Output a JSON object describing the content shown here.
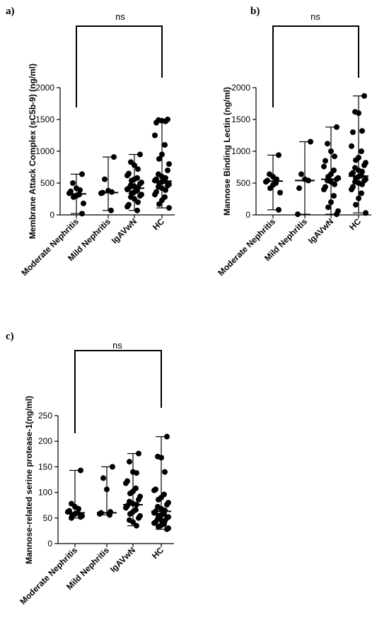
{
  "chart_data": [
    {
      "panel": "a)",
      "type": "scatter",
      "ylabel": "Membrane Attack Complex (sC5b-9) (ng/ml)",
      "ylim": [
        0,
        2000
      ],
      "yticks": [
        "0",
        "500",
        "1000",
        "1500",
        "2000"
      ],
      "categories": [
        "Moderate Nephritis",
        "Mild Nephritis",
        "IgAVwN",
        "HC"
      ],
      "significance": "ns",
      "groups": [
        {
          "name": "Moderate Nephritis",
          "median": 330,
          "min": 20,
          "max": 640,
          "points": [
            640,
            500,
            420,
            390,
            370,
            340,
            320,
            300,
            280,
            180,
            20
          ]
        },
        {
          "name": "Mild Nephritis",
          "median": 350,
          "min": 70,
          "max": 910,
          "points": [
            910,
            560,
            380,
            360,
            350,
            340,
            70
          ]
        },
        {
          "name": "IgAVwN",
          "median": 420,
          "min": 70,
          "max": 950,
          "points": [
            950,
            830,
            780,
            720,
            650,
            620,
            580,
            560,
            540,
            510,
            490,
            470,
            450,
            430,
            420,
            400,
            380,
            360,
            340,
            320,
            300,
            280,
            250,
            200,
            160,
            130,
            70
          ]
        },
        {
          "name": "HC",
          "median": 530,
          "min": 110,
          "max": 1500,
          "points": [
            1500,
            1490,
            1480,
            1470,
            1450,
            1250,
            1100,
            950,
            880,
            800,
            700,
            640,
            600,
            580,
            560,
            540,
            530,
            520,
            500,
            480,
            460,
            440,
            420,
            390,
            360,
            320,
            280,
            230,
            170,
            110
          ]
        }
      ]
    },
    {
      "panel": "b)",
      "type": "scatter",
      "ylabel": "Mannose Binding Lectin (ng/ml)",
      "ylim": [
        0,
        2000
      ],
      "yticks": [
        "0",
        "500",
        "1000",
        "1500",
        "2000"
      ],
      "categories": [
        "Moderate Nephritis",
        "Mild Nephritis",
        "IgAVwN",
        "HC"
      ],
      "significance": "ns",
      "groups": [
        {
          "name": "Moderate Nephritis",
          "median": 530,
          "min": 80,
          "max": 940,
          "points": [
            940,
            640,
            600,
            560,
            540,
            520,
            500,
            470,
            420,
            350,
            80
          ]
        },
        {
          "name": "Mild Nephritis",
          "median": 540,
          "min": 10,
          "max": 1150,
          "points": [
            1150,
            640,
            560,
            540,
            420,
            10
          ]
        },
        {
          "name": "IgAVwN",
          "median": 560,
          "min": 10,
          "max": 1380,
          "points": [
            1380,
            1120,
            1000,
            920,
            850,
            760,
            700,
            640,
            600,
            580,
            560,
            540,
            520,
            480,
            440,
            400,
            300,
            200,
            120,
            60,
            10
          ]
        },
        {
          "name": "HC",
          "median": 610,
          "min": 30,
          "max": 1870,
          "points": [
            1870,
            1620,
            1600,
            1320,
            1300,
            1080,
            1000,
            900,
            860,
            820,
            780,
            740,
            700,
            680,
            660,
            640,
            620,
            600,
            580,
            560,
            540,
            520,
            500,
            480,
            440,
            400,
            340,
            260,
            160,
            30
          ]
        }
      ]
    },
    {
      "panel": "c)",
      "type": "scatter",
      "ylabel": "Mannose-related serine protease-1(ng/ml)",
      "ylim": [
        0,
        250
      ],
      "yticks": [
        "0",
        "50",
        "100",
        "150",
        "200",
        "250"
      ],
      "categories": [
        "Moderate Nephritis",
        "Mild Nephritis",
        "IgAVwN",
        "HC"
      ],
      "significance": "ns",
      "groups": [
        {
          "name": "Moderate Nephritis",
          "median": 60,
          "min": 50,
          "max": 143,
          "points": [
            143,
            78,
            72,
            68,
            64,
            62,
            60,
            58,
            56,
            54,
            52,
            50
          ]
        },
        {
          "name": "Mild Nephritis",
          "median": 60,
          "min": 56,
          "max": 150,
          "points": [
            150,
            128,
            106,
            62,
            60,
            58,
            56
          ]
        },
        {
          "name": "IgAVwN",
          "median": 76,
          "min": 35,
          "max": 176,
          "points": [
            176,
            160,
            140,
            138,
            122,
            118,
            108,
            102,
            98,
            92,
            86,
            82,
            78,
            76,
            74,
            70,
            66,
            62,
            58,
            54,
            50,
            46,
            42,
            35
          ]
        },
        {
          "name": "HC",
          "median": 63,
          "min": 28,
          "max": 209,
          "points": [
            209,
            170,
            168,
            140,
            106,
            104,
            96,
            90,
            86,
            80,
            76,
            72,
            68,
            65,
            63,
            60,
            58,
            56,
            54,
            52,
            50,
            48,
            46,
            44,
            42,
            40,
            38,
            36,
            33,
            30,
            28
          ]
        }
      ]
    }
  ]
}
